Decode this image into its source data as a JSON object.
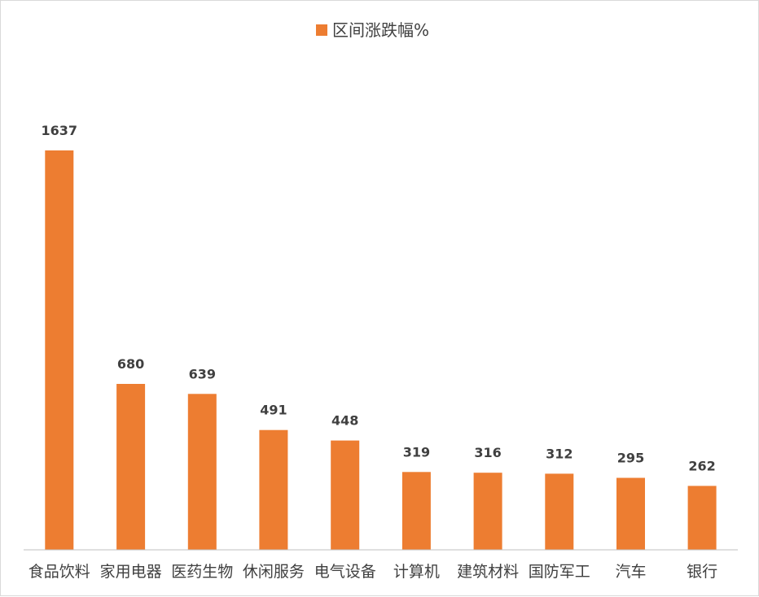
{
  "chart_data": {
    "type": "bar",
    "categories": [
      "食品饮料",
      "家用电器",
      "医药生物",
      "休闲服务",
      "电气设备",
      "计算机",
      "建筑材料",
      "国防军工",
      "汽车",
      "银行"
    ],
    "series": [
      {
        "name": "区间涨跌幅%",
        "values": [
          1637,
          680,
          639,
          491,
          448,
          319,
          316,
          312,
          295,
          262
        ],
        "color": "#ED7D31"
      }
    ],
    "data_labels": [
      "1637",
      "680",
      "639",
      "491",
      "448",
      "319",
      "316",
      "312",
      "295",
      "262"
    ],
    "ylim": [
      0,
      1900
    ],
    "grid": false,
    "legend_position": "top",
    "axis_color": "#bfbfbf",
    "text_color": "#404040"
  }
}
